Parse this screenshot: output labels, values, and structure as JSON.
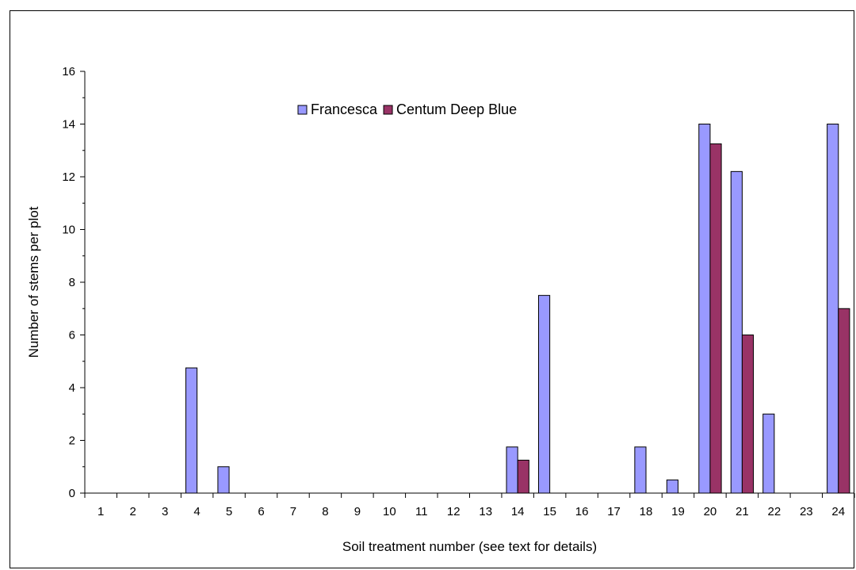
{
  "chart_data": {
    "type": "bar",
    "title": "",
    "xlabel": "Soil treatment number (see text for details)",
    "ylabel": "Number of stems per plot",
    "ylim": [
      0,
      16
    ],
    "yticks": [
      0,
      2,
      4,
      6,
      8,
      10,
      12,
      14,
      16
    ],
    "categories": [
      "1",
      "2",
      "3",
      "4",
      "5",
      "6",
      "7",
      "8",
      "9",
      "10",
      "11",
      "12",
      "13",
      "14",
      "15",
      "16",
      "17",
      "18",
      "19",
      "20",
      "21",
      "22",
      "23",
      "24"
    ],
    "series": [
      {
        "name": "Francesca",
        "color": "#9999ff",
        "values": [
          0,
          0,
          0,
          4.75,
          1,
          0,
          0,
          0,
          0,
          0,
          0,
          0,
          0,
          1.75,
          7.5,
          0,
          0,
          1.75,
          0.5,
          14,
          12.2,
          3,
          0,
          14
        ]
      },
      {
        "name": "Centum Deep Blue",
        "color": "#993366",
        "values": [
          0,
          0,
          0,
          0,
          0,
          0,
          0,
          0,
          0,
          0,
          0,
          0,
          0,
          1.25,
          0,
          0,
          0,
          0,
          0,
          13.25,
          6,
          0,
          0,
          7
        ]
      }
    ],
    "legend": "top-center",
    "grid": false
  }
}
